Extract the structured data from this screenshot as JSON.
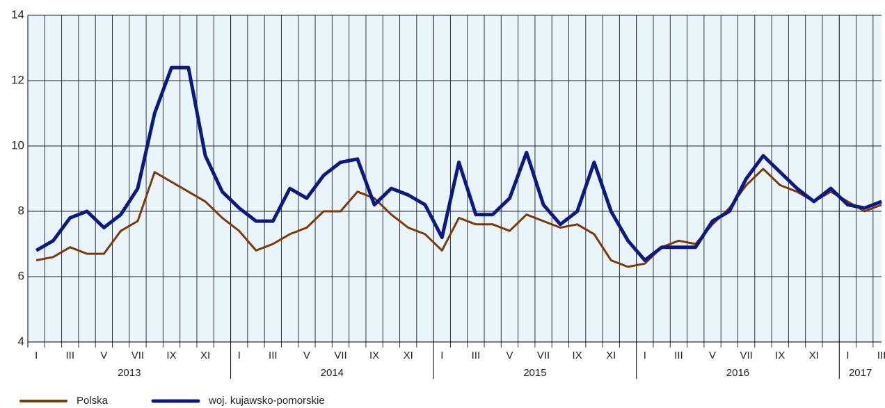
{
  "chart_data": {
    "type": "line",
    "categories": [
      "I",
      null,
      "III",
      null,
      "V",
      null,
      "VII",
      null,
      "IX",
      null,
      "XI",
      null,
      "I",
      null,
      "III",
      null,
      "V",
      null,
      "VII",
      null,
      "IX",
      null,
      "XI",
      null,
      "I",
      null,
      "III",
      null,
      "V",
      null,
      "VII",
      null,
      "IX",
      null,
      "XI",
      null,
      "I",
      null,
      "III",
      null,
      "V",
      null,
      "VII",
      null,
      "IX",
      null,
      "XI",
      null,
      "I",
      null,
      "III"
    ],
    "year_labels": [
      "2013",
      "2014",
      "2015",
      "2016",
      "2017"
    ],
    "series": [
      {
        "name": "Polska",
        "color": "#7a3a0a",
        "values": [
          6.5,
          6.6,
          6.9,
          6.7,
          6.7,
          7.4,
          7.7,
          9.2,
          8.9,
          8.6,
          8.3,
          7.8,
          7.4,
          6.8,
          7.0,
          7.3,
          7.5,
          8.0,
          8.0,
          8.6,
          8.4,
          7.9,
          7.5,
          7.3,
          6.8,
          7.8,
          7.6,
          7.6,
          7.4,
          7.9,
          7.7,
          7.5,
          7.6,
          7.3,
          6.5,
          6.3,
          6.4,
          6.9,
          7.1,
          7.0,
          7.6,
          8.1,
          8.8,
          9.3,
          8.8,
          8.6,
          8.3,
          8.6,
          8.3,
          8.0,
          8.2
        ]
      },
      {
        "name": "woj. kujawsko-pomorskie",
        "color": "#0a1a80",
        "values": [
          6.8,
          7.1,
          7.8,
          8.0,
          7.5,
          7.9,
          8.7,
          11.0,
          12.4,
          12.4,
          9.7,
          8.6,
          8.1,
          7.7,
          7.7,
          8.7,
          8.4,
          9.1,
          9.5,
          9.6,
          8.2,
          8.7,
          8.5,
          8.2,
          7.2,
          9.5,
          7.9,
          7.9,
          8.4,
          9.8,
          8.2,
          7.6,
          8.0,
          9.5,
          8.0,
          7.1,
          6.5,
          6.9,
          6.9,
          6.9,
          7.7,
          8.0,
          9.0,
          9.7,
          9.2,
          8.7,
          8.3,
          8.7,
          8.2,
          8.1,
          8.3
        ]
      }
    ],
    "ylim": [
      4,
      14
    ],
    "yticks": [
      4,
      6,
      8,
      10,
      12,
      14
    ],
    "grid": true
  }
}
